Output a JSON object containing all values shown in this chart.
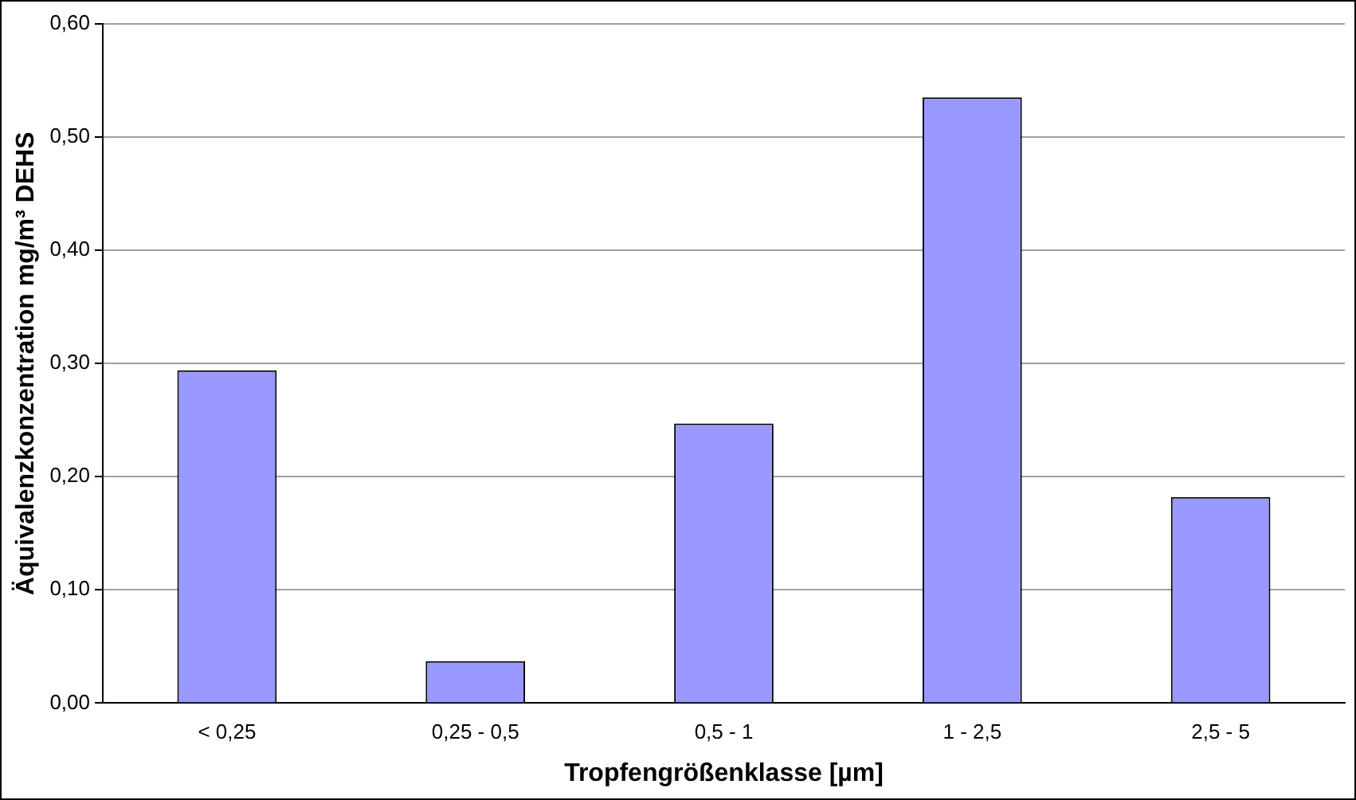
{
  "chart_data": {
    "type": "bar",
    "xlabel": "Tropfengrößenklasse [µm]",
    "ylabel": "Äquivalenzkonzentration mg/m³ DEHS",
    "categories": [
      "< 0,25",
      "0,25 - 0,5",
      "0,5 - 1",
      "1 - 2,5",
      "2,5 - 5"
    ],
    "values": [
      0.294,
      0.037,
      0.247,
      0.535,
      0.182
    ],
    "color": "#9999ff",
    "ylim": [
      0,
      0.6
    ],
    "yticks": [
      {
        "value": 0,
        "label": "0,00"
      },
      {
        "value": 0.1,
        "label": "0,10"
      },
      {
        "value": 0.2,
        "label": "0,20"
      },
      {
        "value": 0.3,
        "label": "0,30"
      },
      {
        "value": 0.4,
        "label": "0,40"
      },
      {
        "value": 0.5,
        "label": "0,50"
      },
      {
        "value": 0.6,
        "label": "0,60"
      }
    ],
    "grid": "y"
  }
}
